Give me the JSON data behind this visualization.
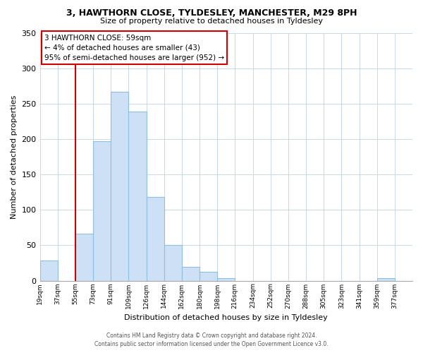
{
  "title": "3, HAWTHORN CLOSE, TYLDESLEY, MANCHESTER, M29 8PH",
  "subtitle": "Size of property relative to detached houses in Tyldesley",
  "xlabel": "Distribution of detached houses by size in Tyldesley",
  "ylabel": "Number of detached properties",
  "bin_labels": [
    "19sqm",
    "37sqm",
    "55sqm",
    "73sqm",
    "91sqm",
    "109sqm",
    "126sqm",
    "144sqm",
    "162sqm",
    "180sqm",
    "198sqm",
    "216sqm",
    "234sqm",
    "252sqm",
    "270sqm",
    "288sqm",
    "305sqm",
    "323sqm",
    "341sqm",
    "359sqm",
    "377sqm"
  ],
  "bar_heights": [
    28,
    0,
    66,
    197,
    267,
    239,
    118,
    50,
    19,
    12,
    4,
    0,
    0,
    0,
    0,
    0,
    0,
    0,
    0,
    4,
    0
  ],
  "bar_color": "#cde0f5",
  "bar_edge_color": "#8fbfdf",
  "ylim": [
    0,
    350
  ],
  "yticks": [
    0,
    50,
    100,
    150,
    200,
    250,
    300,
    350
  ],
  "red_line_bin": 2,
  "annotation_title": "3 HAWTHORN CLOSE: 59sqm",
  "annotation_line1": "← 4% of detached houses are smaller (43)",
  "annotation_line2": "95% of semi-detached houses are larger (952) →",
  "footer_line1": "Contains HM Land Registry data © Crown copyright and database right 2024.",
  "footer_line2": "Contains public sector information licensed under the Open Government Licence v3.0."
}
